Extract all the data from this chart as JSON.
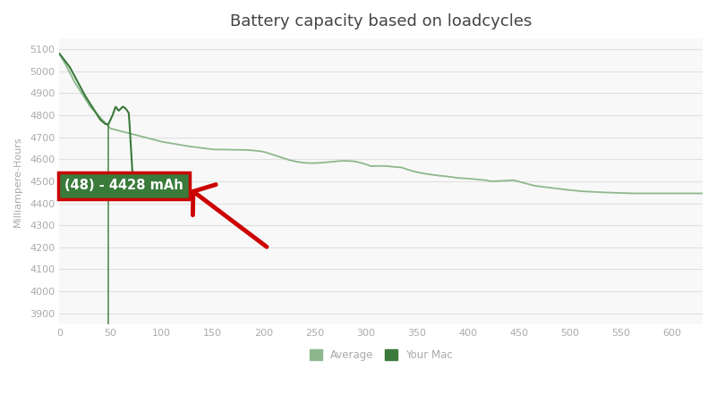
{
  "title": "Battery capacity based on loadcycles",
  "ylabel": "Milliampere-Hours",
  "xlim": [
    0,
    630
  ],
  "ylim": [
    3850,
    5150
  ],
  "yticks": [
    3900,
    4000,
    4100,
    4200,
    4300,
    4400,
    4500,
    4600,
    4700,
    4800,
    4900,
    5000,
    5100
  ],
  "xticks": [
    0,
    50,
    100,
    150,
    200,
    250,
    300,
    350,
    400,
    450,
    500,
    550,
    600
  ],
  "avg_color": "#8db88d",
  "mac_color": "#3a7a3a",
  "background_color": "#f8f8f8",
  "grid_color": "#e0e0e0",
  "tooltip_text": "(48) - 4428 mAh",
  "tooltip_bg": "#3a7a3a",
  "tooltip_border": "#cc0000",
  "arrow_color": "#cc0000",
  "legend_avg_color": "#8db88d",
  "legend_mac_color": "#3a7a3a",
  "highlight_x": 48,
  "highlight_y": 4428
}
